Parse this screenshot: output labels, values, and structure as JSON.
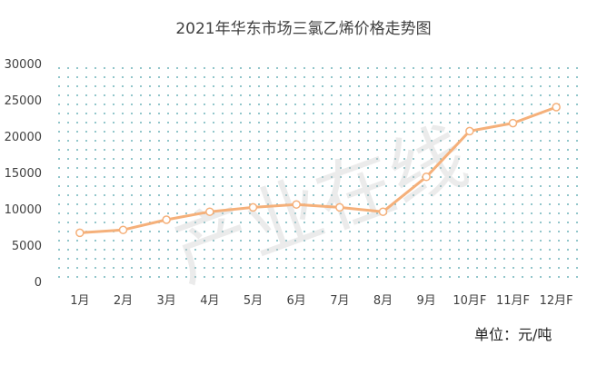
{
  "chart_data": {
    "type": "line",
    "title": "2021年华东市场三氯乙烯价格走势图",
    "unit_label": "单位：元/吨",
    "watermark": "产业在线",
    "categories": [
      "1月",
      "2月",
      "3月",
      "4月",
      "5月",
      "6月",
      "7月",
      "8月",
      "9月",
      "10月F",
      "11月F",
      "12月F"
    ],
    "series": [
      {
        "values": [
          6700,
          7100,
          8500,
          9600,
          10200,
          10600,
          10200,
          9600,
          14400,
          20700,
          21800,
          24000
        ]
      }
    ],
    "ylim": [
      0,
      30000
    ],
    "yticks": [
      0,
      5000,
      10000,
      15000,
      20000,
      25000,
      30000
    ],
    "grid": "dotted",
    "colors": {
      "line": "#f5b07a",
      "marker_fill": "#ffffff",
      "plot_dots": "#6fb3bb",
      "text": "#404040"
    }
  }
}
